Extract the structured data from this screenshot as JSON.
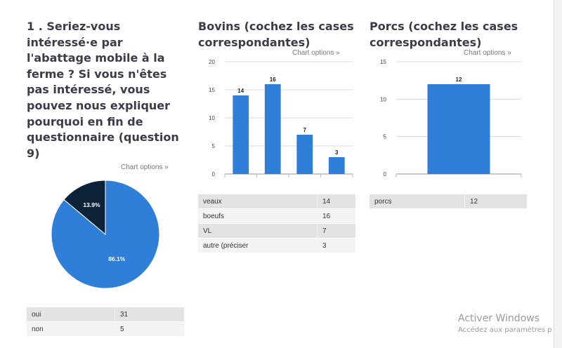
{
  "questions": [
    {
      "title": "1 . Seriez-vous intéressé·e par l'abattage mobile à la ferme ? Si vous n'êtes pas intéressé, vous pouvez nous expliquer pourquoi en fin de questionnaire (question 9)",
      "chart_options": "Chart options »",
      "rows": [
        {
          "label": "oui",
          "value": "31"
        },
        {
          "label": "non",
          "value": "5"
        }
      ]
    },
    {
      "title": "Bovins (cochez les cases correspondantes)",
      "chart_options": "Chart options »",
      "rows": [
        {
          "label": "veaux",
          "value": "14"
        },
        {
          "label": "boeufs",
          "value": "16"
        },
        {
          "label": "VL",
          "value": "7"
        },
        {
          "label": "autre (préciser",
          "value": "3"
        }
      ]
    },
    {
      "title": "Porcs (cochez les cases correspondantes)",
      "chart_options": "Chart options »",
      "rows": [
        {
          "label": "porcs",
          "value": "12"
        }
      ]
    }
  ],
  "chart_data": [
    {
      "type": "pie",
      "categories": [
        "oui",
        "non"
      ],
      "values": [
        31,
        5
      ],
      "percent_labels": [
        "86.1%",
        "13.9%"
      ],
      "colors": [
        "#2f7ed8",
        "#0d233a"
      ]
    },
    {
      "type": "bar",
      "categories": [
        "veaux",
        "boeufs",
        "VL",
        "autre (préciser"
      ],
      "values": [
        14,
        16,
        7,
        3
      ],
      "ylim": [
        0,
        20
      ],
      "yticks": [
        "0",
        "5",
        "10",
        "15",
        "20"
      ],
      "color": "#2f7ed8"
    },
    {
      "type": "bar",
      "categories": [
        "porcs"
      ],
      "values": [
        12
      ],
      "ylim": [
        0,
        15
      ],
      "yticks": [
        "0",
        "5",
        "10",
        "15"
      ],
      "color": "#2f7ed8"
    }
  ],
  "watermark": {
    "line1": "Activer Windows",
    "line2": "Accédez aux paramètres p"
  }
}
